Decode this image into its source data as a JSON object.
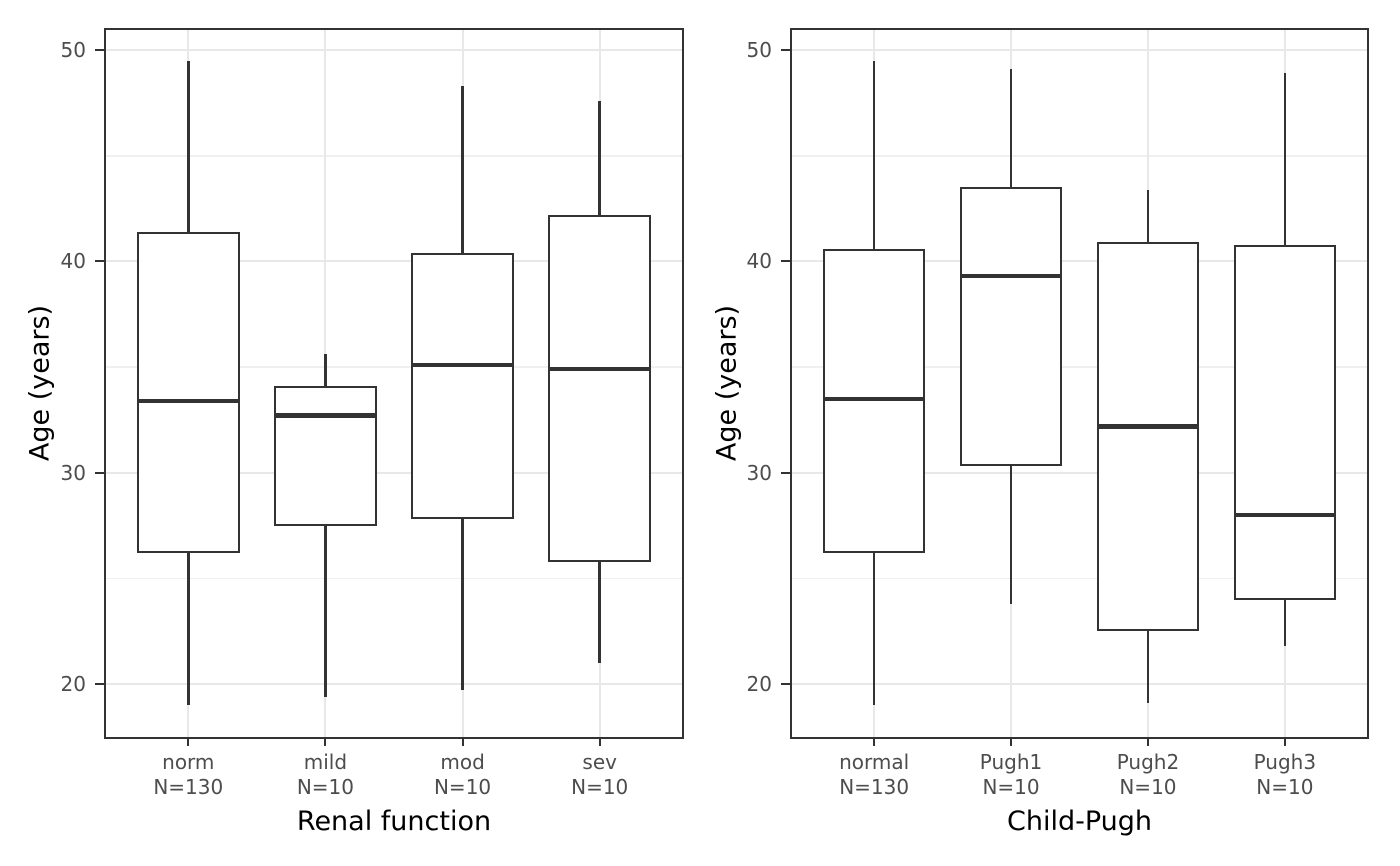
{
  "colors": {
    "background": "#ffffff",
    "panel_border": "#333333",
    "grid_major": "#e8e8e8",
    "grid_minor": "#f0f0f0",
    "box_stroke": "#333333",
    "box_fill": "#ffffff",
    "tick_label": "#4d4d4d",
    "axis_title": "#000000"
  },
  "chart_data": [
    {
      "type": "boxplot",
      "title": "",
      "xlabel": "Renal function",
      "ylabel": "Age (years)",
      "ylim": [
        17.5,
        50.95
      ],
      "yticks": [
        50,
        40,
        30,
        20
      ],
      "yticks_minor": [
        45,
        35,
        25
      ],
      "grid": "major-and-minor-horizontal, major-vertical-at-categories",
      "legend": "none",
      "categories": [
        {
          "label": "norm",
          "count": "N=130",
          "whisker_low": 19.0,
          "q1": 26.2,
          "median": 33.4,
          "q3": 41.4,
          "whisker_high": 49.5
        },
        {
          "label": "mild",
          "count": "N=10",
          "whisker_low": 19.4,
          "q1": 27.5,
          "median": 32.7,
          "q3": 34.1,
          "whisker_high": 35.6
        },
        {
          "label": "mod",
          "count": "N=10",
          "whisker_low": 19.7,
          "q1": 27.8,
          "median": 35.1,
          "q3": 40.4,
          "whisker_high": 48.3
        },
        {
          "label": "sev",
          "count": "N=10",
          "whisker_low": 21.0,
          "q1": 25.8,
          "median": 34.9,
          "q3": 42.2,
          "whisker_high": 47.6
        }
      ]
    },
    {
      "type": "boxplot",
      "title": "",
      "xlabel": "Child-Pugh",
      "ylabel": "Age (years)",
      "ylim": [
        17.5,
        50.95
      ],
      "yticks": [
        50,
        40,
        30,
        20
      ],
      "yticks_minor": [
        45,
        35,
        25
      ],
      "grid": "major-and-minor-horizontal, major-vertical-at-categories",
      "legend": "none",
      "categories": [
        {
          "label": "normal",
          "count": "N=130",
          "whisker_low": 19.0,
          "q1": 26.2,
          "median": 33.5,
          "q3": 40.6,
          "whisker_high": 49.5
        },
        {
          "label": "Pugh1",
          "count": "N=10",
          "whisker_low": 23.8,
          "q1": 30.3,
          "median": 39.3,
          "q3": 43.5,
          "whisker_high": 49.1
        },
        {
          "label": "Pugh2",
          "count": "N=10",
          "whisker_low": 19.1,
          "q1": 22.5,
          "median": 32.2,
          "q3": 40.9,
          "whisker_high": 43.4
        },
        {
          "label": "Pugh3",
          "count": "N=10",
          "whisker_low": 21.8,
          "q1": 24.0,
          "median": 28.0,
          "q3": 40.8,
          "whisker_high": 48.9
        }
      ]
    }
  ]
}
